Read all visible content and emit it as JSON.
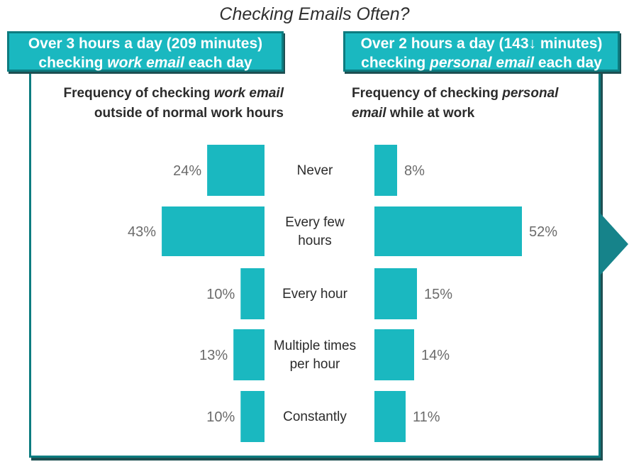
{
  "title": "Checking Emails Often?",
  "banners": {
    "left": {
      "line1": "Over 3 hours a day (209 minutes)",
      "line2_pre": "checking ",
      "line2_em": "work email",
      "line2_post": " each day"
    },
    "right": {
      "line1": "Over 2 hours a day (143↓ minutes)",
      "line2_pre": "checking ",
      "line2_em": "personal email",
      "line2_post": " each day"
    }
  },
  "subheads": {
    "left": {
      "pre": "Frequency of checking ",
      "em": "work email",
      "post": "outside of normal work hours"
    },
    "right": {
      "pre": "Frequency of checking ",
      "em": "personal",
      "em2": "email",
      "post": " while at work"
    }
  },
  "colors": {
    "bar": "#1ab8c0",
    "border": "#0d7c80"
  },
  "chart_data": {
    "type": "bar",
    "orientation": "horizontal-butterfly",
    "categories": [
      [
        "Never"
      ],
      [
        "Every few",
        "hours"
      ],
      [
        "Every hour"
      ],
      [
        "Multiple times",
        "per hour"
      ],
      [
        "Constantly"
      ]
    ],
    "series": [
      {
        "values": [
          24,
          43,
          10,
          13,
          10
        ],
        "labels": [
          "24%",
          "43%",
          "10%",
          "13%",
          "10%"
        ]
      },
      {
        "values": [
          8,
          52,
          15,
          14,
          11
        ],
        "labels": [
          "8%",
          "52%",
          "15%",
          "14%",
          "11%"
        ]
      }
    ]
  }
}
